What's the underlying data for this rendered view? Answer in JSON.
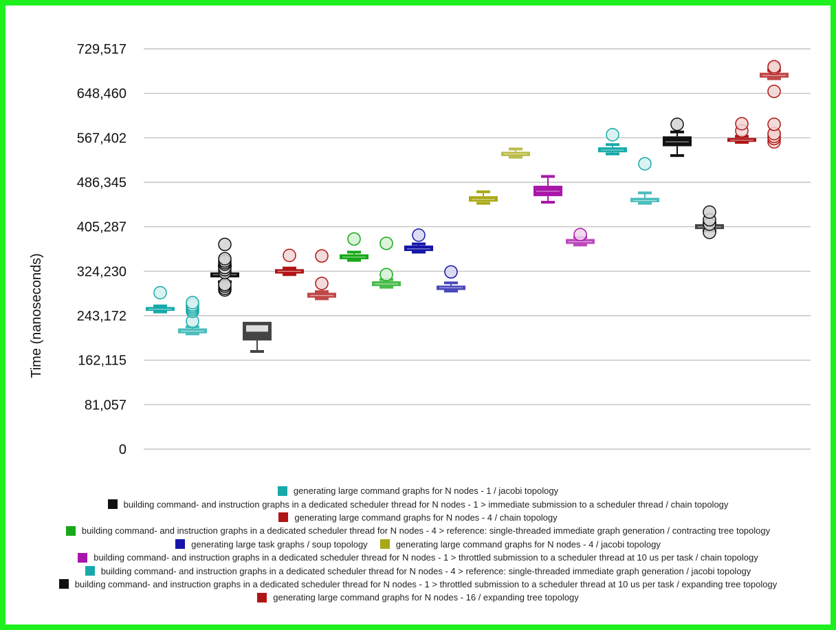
{
  "chart_data": {
    "type": "box",
    "title": "",
    "xlabel": "",
    "ylabel": "Time (nanoseconds)",
    "ylim": [
      0,
      729517
    ],
    "yticks": [
      "0",
      "81,057",
      "162,115",
      "243,172",
      "324,230",
      "405,287",
      "486,345",
      "567,402",
      "648,460",
      "729,517"
    ],
    "yticks_values": [
      0,
      81057,
      162115,
      243172,
      324230,
      405287,
      486345,
      567402,
      648460,
      729517
    ],
    "grid": true,
    "legend_position": "bottom",
    "series": [
      {
        "name": "generating large command graphs for N nodes - 1 / jacobi topology",
        "color": "#17a9a9",
        "boxes": [
          {
            "q1": 252000,
            "median": 255000,
            "q3": 259000,
            "whisker_low": 250000,
            "whisker_high": 261000,
            "outliers": [
              285000
            ]
          }
        ]
      },
      {
        "name": "building command- and instruction graphs in a dedicated scheduler thread for N nodes - 1 > immediate submission to a scheduler thread / chain topology",
        "color": "#111111",
        "boxes": [
          {
            "q1": 313000,
            "median": 318000,
            "q3": 322000,
            "whisker_low": 305000,
            "whisker_high": 334000,
            "outliers": [
              290000,
              293000,
              297000,
              300000,
              322000,
              327000,
              331000,
              337000,
              340000,
              343000,
              347000,
              373000
            ]
          }
        ]
      },
      {
        "name": "generating large command graphs for N nodes - 4 / chain topology",
        "color": "#b01515",
        "boxes": [
          {
            "q1": 320000,
            "median": 324000,
            "q3": 328000,
            "whisker_low": 318000,
            "whisker_high": 330000,
            "outliers": [
              353000
            ]
          }
        ]
      },
      {
        "name": "building command- and instruction graphs in a dedicated scheduler thread for N nodes - 4 > reference: single-threaded immediate graph generation / contracting tree topology",
        "color": "#17a917",
        "boxes": [
          {
            "q1": 346000,
            "median": 350000,
            "q3": 355000,
            "whisker_low": 344000,
            "whisker_high": 359000,
            "outliers": [
              383000
            ]
          }
        ]
      },
      {
        "name": "generating large task graphs / soup topology",
        "color": "#1515a9",
        "boxes": [
          {
            "q1": 361000,
            "median": 365000,
            "q3": 371000,
            "whisker_low": 359000,
            "whisker_high": 374000,
            "outliers": [
              390000
            ]
          }
        ]
      },
      {
        "name": "generating large command graphs for N nodes - 4 / jacobi topology",
        "color": "#a9a917",
        "boxes": [
          {
            "q1": 451000,
            "median": 455000,
            "q3": 461000,
            "whisker_low": 448000,
            "whisker_high": 469000,
            "outliers": []
          }
        ]
      },
      {
        "name": "building command- and instruction graphs in a dedicated scheduler thread for N nodes - 1 > throttled submission to a scheduler thread at 10 us per task / chain topology",
        "color": "#a917a9",
        "boxes": [
          {
            "q1": 461000,
            "median": 470000,
            "q3": 480000,
            "whisker_low": 450000,
            "whisker_high": 497000,
            "outliers": []
          }
        ]
      },
      {
        "name": "building command- and instruction graphs in a dedicated scheduler thread for N nodes - 4 > reference: single-threaded immediate graph generation / jacobi topology",
        "color": "#17a9a9",
        "boxes": [
          {
            "q1": 541000,
            "median": 545000,
            "q3": 550000,
            "whisker_low": 538000,
            "whisker_high": 555000,
            "outliers": [
              573000
            ]
          }
        ]
      },
      {
        "name": "building command- and instruction graphs in a dedicated scheduler thread for N nodes - 1 > throttled submission to a scheduler thread at 10 us per task / expanding tree topology",
        "color": "#111111",
        "boxes": [
          {
            "q1": 552000,
            "median": 560000,
            "q3": 570000,
            "whisker_low": 535000,
            "whisker_high": 578000,
            "outliers": [
              592000
            ]
          }
        ]
      },
      {
        "name": "generating large command graphs for N nodes - 16 / expanding tree topology",
        "color": "#b01515",
        "boxes": [
          {
            "q1": 560000,
            "median": 563000,
            "q3": 567000,
            "whisker_low": 559000,
            "whisker_high": 570000,
            "outliers": [
              580000,
              593000
            ]
          }
        ]
      }
    ],
    "extra_boxes": [
      {
        "color": "#17a9a9",
        "q1": 211000,
        "median": 215000,
        "q3": 220000,
        "whisker_low": 210000,
        "whisker_high": 223000,
        "outliers": [
          233000,
          251000,
          254000,
          257000,
          260000,
          263000,
          267000
        ]
      },
      {
        "color": "#111111",
        "q1": 198000,
        "median": 214000,
        "q3": 232000,
        "whisker_low": 178000,
        "whisker_high": 234000,
        "outliers": []
      },
      {
        "color": "#b01515",
        "q1": 276000,
        "median": 280000,
        "q3": 285000,
        "whisker_low": 274000,
        "whisker_high": 287000,
        "outliers": [
          302000,
          352000
        ]
      },
      {
        "color": "#17a917",
        "q1": 297000,
        "median": 301000,
        "q3": 306000,
        "whisker_low": 295000,
        "whisker_high": 309000,
        "outliers": [
          318000,
          375000
        ]
      },
      {
        "color": "#1515a9",
        "q1": 290000,
        "median": 294000,
        "q3": 298000,
        "whisker_low": 288000,
        "whisker_high": 303000,
        "outliers": [
          323000
        ]
      },
      {
        "color": "#a9a917",
        "q1": 534000,
        "median": 538000,
        "q3": 542000,
        "whisker_low": 532000,
        "whisker_high": 547000,
        "outliers": []
      },
      {
        "color": "#a917a9",
        "q1": 374000,
        "median": 378000,
        "q3": 383000,
        "whisker_low": 372000,
        "whisker_high": 386000,
        "outliers": [
          391000
        ]
      },
      {
        "color": "#17a9a9",
        "q1": 450000,
        "median": 453000,
        "q3": 458000,
        "whisker_low": 448000,
        "whisker_high": 467000,
        "outliers": [
          520000
        ]
      },
      {
        "color": "#111111",
        "q1": 401000,
        "median": 405000,
        "q3": 410000,
        "whisker_low": 398000,
        "whisker_high": 412000,
        "outliers": [
          395000,
          410000,
          418000,
          432000
        ]
      },
      {
        "color": "#b01515",
        "q1": 677000,
        "median": 681000,
        "q3": 686000,
        "whisker_low": 675000,
        "whisker_high": 690000,
        "outliers": [
          652000,
          694000,
          697000,
          560000,
          566000,
          570000,
          575000,
          592000
        ]
      }
    ]
  },
  "legend": {
    "rows": [
      [
        0
      ],
      [
        1
      ],
      [
        2
      ],
      [
        3
      ],
      [
        4,
        5
      ],
      [
        6
      ],
      [
        7
      ],
      [
        8
      ],
      [
        9
      ]
    ]
  }
}
